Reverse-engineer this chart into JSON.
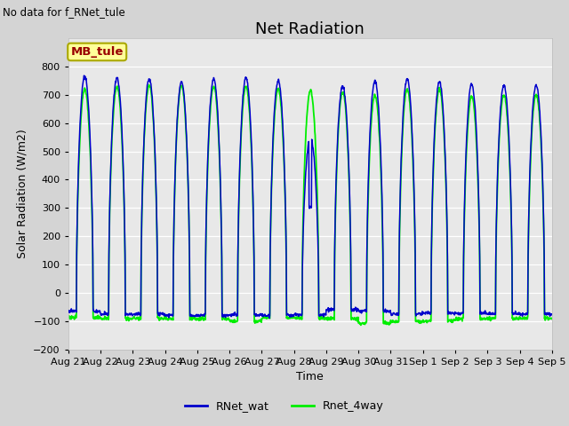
{
  "title": "Net Radiation",
  "xlabel": "Time",
  "ylabel": "Solar Radiation (W/m2)",
  "ylim": [
    -200,
    900
  ],
  "yticks": [
    -200,
    -100,
    0,
    100,
    200,
    300,
    400,
    500,
    600,
    700,
    800
  ],
  "x_labels": [
    "Aug 21",
    "Aug 22",
    "Aug 23",
    "Aug 24",
    "Aug 25",
    "Aug 26",
    "Aug 27",
    "Aug 28",
    "Aug 29",
    "Aug 30",
    "Aug 31",
    "Sep 1",
    "Sep 2",
    "Sep 3",
    "Sep 4",
    "Sep 5"
  ],
  "top_left_text": "No data for f_RNet_tule",
  "annotation_box": "MB_tule",
  "annotation_box_color": "#ffff99",
  "annotation_box_text_color": "#990000",
  "color_blue": "#0000cc",
  "color_green": "#00ee00",
  "legend_labels": [
    "RNet_wat",
    "Rnet_4way"
  ],
  "fig_bg_color": "#d4d4d4",
  "plot_bg_color": "#e8e8e8",
  "num_days": 15,
  "day_peak_blue": [
    765,
    760,
    757,
    745,
    756,
    760,
    750,
    550,
    730,
    750,
    756,
    746,
    738,
    733,
    735
  ],
  "day_peak_green": [
    720,
    730,
    735,
    732,
    730,
    730,
    722,
    715,
    710,
    700,
    720,
    720,
    695,
    698,
    700
  ],
  "day_trough_blue": [
    -65,
    -75,
    -75,
    -80,
    -80,
    -78,
    -80,
    -78,
    -60,
    -65,
    -75,
    -72,
    -72,
    -73,
    -75
  ],
  "day_trough_green": [
    -88,
    -92,
    -90,
    -92,
    -92,
    -100,
    -88,
    -90,
    -92,
    -108,
    -102,
    -98,
    -92,
    -92,
    -90
  ],
  "day_cloud_blue": [
    0,
    0,
    0,
    0,
    0,
    0,
    0,
    1,
    0,
    0,
    0,
    0,
    0,
    0,
    0
  ],
  "cloud_val_blue": [
    300,
    300,
    300,
    300,
    300,
    300,
    300,
    300,
    300,
    300,
    300,
    300,
    300,
    300,
    300
  ],
  "title_fontsize": 13,
  "label_fontsize": 9,
  "tick_fontsize": 8,
  "legend_fontsize": 9
}
